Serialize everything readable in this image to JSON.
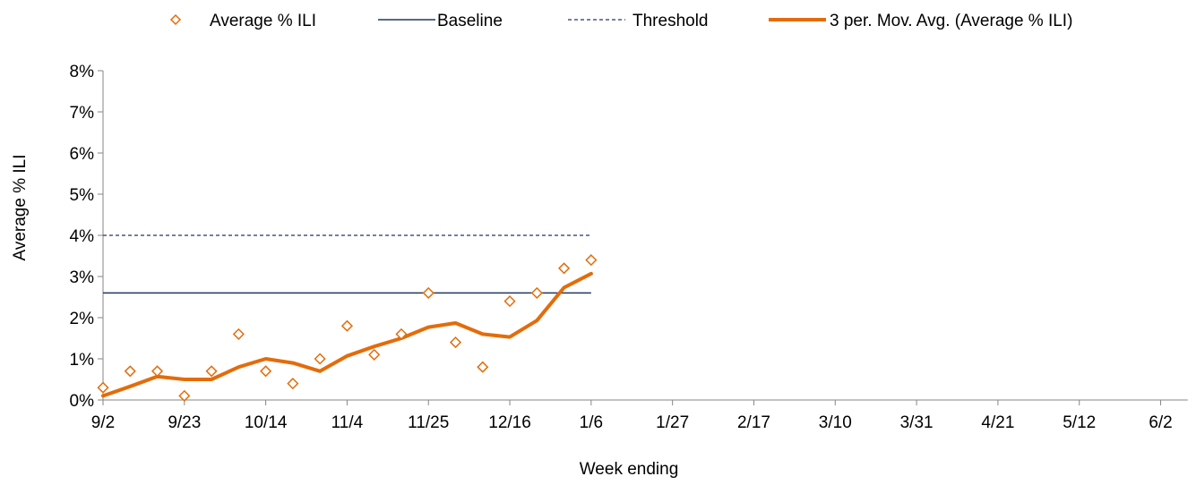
{
  "chart_data": {
    "type": "line",
    "xlabel": "Week ending",
    "ylabel": "Average % ILI",
    "x_tick_labels": [
      "9/2",
      "9/23",
      "10/14",
      "11/4",
      "11/25",
      "12/16",
      "1/6",
      "1/27",
      "2/17",
      "3/10",
      "3/31",
      "4/21",
      "5/12",
      "6/2"
    ],
    "y_tick_labels": [
      "0%",
      "1%",
      "2%",
      "3%",
      "4%",
      "5%",
      "6%",
      "7%",
      "8%"
    ],
    "ylim": [
      0,
      8
    ],
    "week_count": 40,
    "legend": {
      "placement": "top",
      "entries": [
        "Average % ILI",
        "Baseline",
        "Threshold",
        "3 per. Mov. Avg. (Average % ILI)"
      ]
    },
    "series": [
      {
        "name": "Average % ILI",
        "kind": "scatter",
        "marker": "diamond",
        "color": "#E36C0A",
        "values": [
          0.3,
          0.7,
          0.7,
          0.1,
          0.7,
          1.6,
          0.7,
          0.4,
          1.0,
          1.8,
          1.1,
          1.6,
          2.6,
          1.4,
          0.8,
          2.4,
          2.6,
          3.2,
          3.4
        ]
      },
      {
        "name": "Baseline",
        "kind": "line",
        "color": "#1F3864",
        "value": 2.6,
        "weeks": [
          0,
          18
        ]
      },
      {
        "name": "Threshold",
        "kind": "dashed-line",
        "color": "#1F3864",
        "value": 4.0,
        "weeks": [
          0,
          18
        ]
      },
      {
        "name": "3 per. Mov. Avg. (Average % ILI)",
        "kind": "line",
        "color": "#E36C0A",
        "values": [
          0.1,
          0.33,
          0.57,
          0.5,
          0.5,
          0.8,
          1.0,
          0.9,
          0.7,
          1.07,
          1.3,
          1.5,
          1.77,
          1.87,
          1.6,
          1.53,
          1.93,
          2.73,
          3.07
        ]
      }
    ]
  }
}
